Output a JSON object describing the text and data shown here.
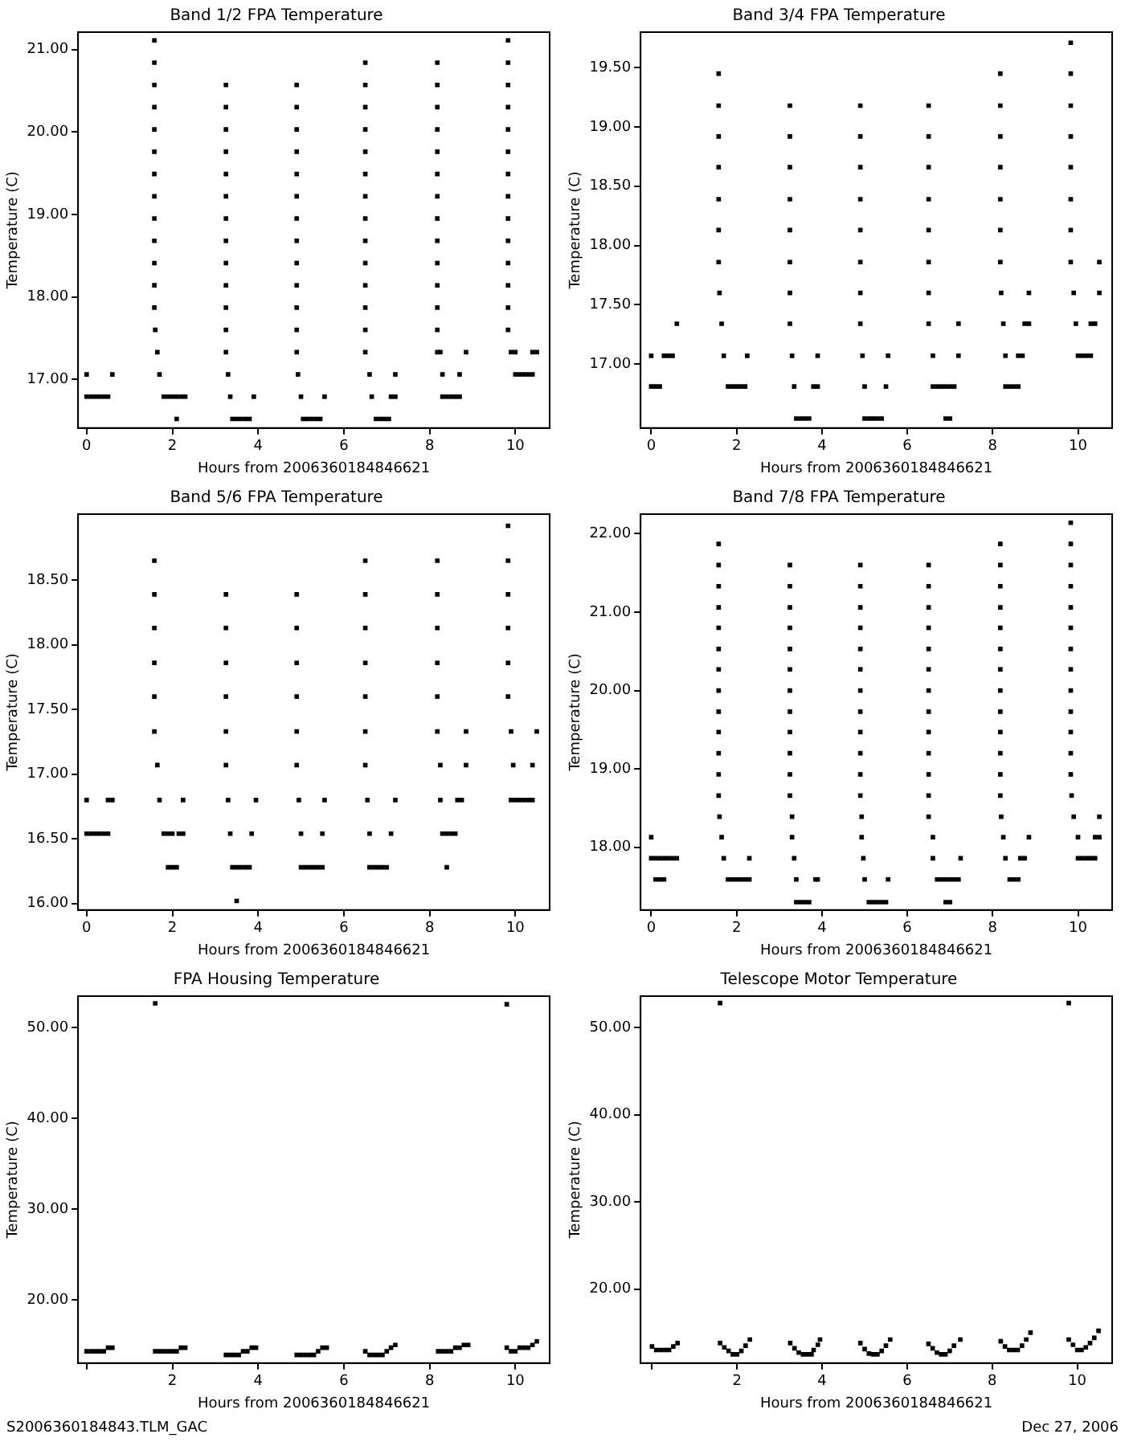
{
  "chart_data": [
    {
      "type": "scatter",
      "title": "Band 1/2 FPA Temperature",
      "xlabel": "Hours from 2006360184846621",
      "ylabel": "Temperature (C)",
      "marker": "square",
      "xlim": [
        -0.2,
        10.8
      ],
      "xticks": [
        0,
        2,
        4,
        6,
        8,
        10
      ],
      "ylim": [
        16.41,
        21.21
      ],
      "yticks": [
        {
          "value": 17,
          "label": "17.00"
        },
        {
          "value": 18,
          "label": "18.00"
        },
        {
          "value": 19,
          "label": "19.00"
        },
        {
          "value": 20,
          "label": "20.00"
        },
        {
          "value": 21,
          "label": "21.00"
        }
      ],
      "series": [
        {
          "color": "#000000",
          "x": [
            0,
            0.1,
            0.2,
            0.3,
            0.4,
            0.5,
            0,
            0.6
          ],
          "values": [
            16.79,
            16.79,
            16.79,
            16.79,
            16.79,
            16.79,
            17.06,
            17.06
          ]
        },
        {
          "color": "#000000",
          "x": [
            1.58,
            1.58,
            1.58,
            1.58,
            1.58,
            1.58,
            1.58,
            1.58,
            1.58,
            1.58,
            1.58,
            1.58,
            1.58,
            1.6,
            1.65,
            1.7
          ],
          "values": [
            17.87,
            18.14,
            18.41,
            18.68,
            18.95,
            19.22,
            19.49,
            19.76,
            20.03,
            20.3,
            20.57,
            20.84,
            21.11,
            17.6,
            17.33,
            17.06
          ]
        },
        {
          "color": "#000000",
          "x": [
            1.8,
            1.9,
            2,
            2.1,
            2.2,
            2.3,
            2.1
          ],
          "values": [
            16.79,
            16.79,
            16.79,
            16.79,
            16.79,
            16.79,
            16.52
          ]
        },
        {
          "color": "#000000",
          "x": [
            3.25,
            3.25,
            3.25,
            3.25,
            3.25,
            3.25,
            3.25,
            3.25,
            3.25,
            3.25,
            3.25,
            3.25,
            3.25,
            3.3,
            3.35,
            3.9,
            3.4,
            3.5,
            3.6,
            3.7,
            3.8
          ],
          "values": [
            17.33,
            17.6,
            17.87,
            18.14,
            18.41,
            18.68,
            18.95,
            19.22,
            19.49,
            19.76,
            20.03,
            20.3,
            20.57,
            17.06,
            16.79,
            16.79,
            16.52,
            16.52,
            16.52,
            16.52,
            16.52
          ]
        },
        {
          "color": "#000000",
          "x": [
            4.9,
            4.9,
            4.9,
            4.9,
            4.9,
            4.9,
            4.9,
            4.9,
            4.9,
            4.9,
            4.9,
            4.9,
            4.9,
            4.93,
            5,
            5.55,
            5.05,
            5.15,
            5.25,
            5.35,
            5.45
          ],
          "values": [
            17.33,
            17.6,
            17.87,
            18.14,
            18.41,
            18.68,
            18.95,
            19.22,
            19.49,
            19.76,
            20.03,
            20.3,
            20.57,
            17.06,
            16.79,
            16.79,
            16.52,
            16.52,
            16.52,
            16.52,
            16.52
          ]
        },
        {
          "color": "#000000",
          "x": [
            6.5,
            6.5,
            6.5,
            6.5,
            6.5,
            6.5,
            6.5,
            6.5,
            6.5,
            6.5,
            6.5,
            6.5,
            6.5,
            6.5,
            6.6,
            7.2,
            6.65,
            7.1,
            7.2,
            6.75,
            6.85,
            6.95,
            7.05
          ],
          "values": [
            17.33,
            17.6,
            17.87,
            18.14,
            18.41,
            18.68,
            18.95,
            19.22,
            19.49,
            19.76,
            20.03,
            20.3,
            20.57,
            20.84,
            17.06,
            17.06,
            16.79,
            16.79,
            16.79,
            16.52,
            16.52,
            16.52,
            16.52
          ]
        },
        {
          "color": "#000000",
          "x": [
            8.18,
            8.18,
            8.18,
            8.18,
            8.18,
            8.18,
            8.18,
            8.18,
            8.18,
            8.18,
            8.18,
            8.18,
            8.18,
            8.18,
            8.25,
            8.85,
            8.3,
            8.7,
            8.3,
            8.4,
            8.5,
            8.6,
            8.7
          ],
          "values": [
            17.33,
            17.6,
            17.87,
            18.14,
            18.41,
            18.68,
            18.95,
            19.22,
            19.49,
            19.76,
            20.03,
            20.3,
            20.57,
            20.84,
            17.33,
            17.33,
            17.06,
            17.06,
            16.79,
            16.79,
            16.79,
            16.79,
            16.79
          ]
        },
        {
          "color": "#000000",
          "x": [
            9.83,
            9.83,
            9.83,
            9.83,
            9.83,
            9.83,
            9.83,
            9.83,
            9.83,
            9.83,
            9.83,
            9.83,
            9.83,
            9.83,
            9.9,
            10,
            10.4,
            10.5,
            10,
            10.1,
            10.2,
            10.3,
            10.4
          ],
          "values": [
            17.6,
            17.87,
            18.14,
            18.41,
            18.68,
            18.95,
            19.22,
            19.49,
            19.76,
            20.03,
            20.3,
            20.57,
            20.84,
            21.11,
            17.33,
            17.33,
            17.33,
            17.33,
            17.06,
            17.06,
            17.06,
            17.06,
            17.06
          ]
        }
      ]
    },
    {
      "type": "scatter",
      "title": "Band 3/4 FPA Temperature",
      "xlabel": "Hours from 2006360184846621",
      "ylabel": "Temperature (C)",
      "marker": "square",
      "xlim": [
        -0.25,
        10.8
      ],
      "xticks": [
        0,
        2,
        4,
        6,
        8,
        10
      ],
      "ylim": [
        16.46,
        19.8
      ],
      "yticks": [
        {
          "value": 17,
          "label": "17.00"
        },
        {
          "value": 17.5,
          "label": "17.50"
        },
        {
          "value": 18,
          "label": "18.00"
        },
        {
          "value": 18.5,
          "label": "18.50"
        },
        {
          "value": 19,
          "label": "19.00"
        },
        {
          "value": 19.5,
          "label": "19.50"
        }
      ],
      "series": [
        {
          "color": "#000000",
          "x": [
            0,
            0.1,
            0.2,
            0,
            0.3,
            0.4,
            0.5,
            0.6
          ],
          "values": [
            16.81,
            16.81,
            16.81,
            17.07,
            17.07,
            17.07,
            17.07,
            17.34
          ]
        },
        {
          "color": "#000000",
          "x": [
            1.58,
            1.58,
            1.58,
            1.58,
            1.58,
            1.58,
            1.58,
            1.6,
            1.65,
            1.7,
            2.25,
            1.8,
            1.9,
            2,
            2.1,
            2.2
          ],
          "values": [
            17.86,
            18.13,
            18.39,
            18.66,
            18.92,
            19.18,
            19.45,
            17.6,
            17.34,
            17.07,
            17.07,
            16.81,
            16.81,
            16.81,
            16.81,
            16.81
          ]
        },
        {
          "color": "#000000",
          "x": [
            3.25,
            3.25,
            3.25,
            3.25,
            3.25,
            3.25,
            3.25,
            3.25,
            3.3,
            3.9,
            3.35,
            3.8,
            3.9,
            3.4,
            3.5,
            3.6,
            3.7
          ],
          "values": [
            17.34,
            17.6,
            17.86,
            18.13,
            18.39,
            18.66,
            18.92,
            19.18,
            17.07,
            17.07,
            16.81,
            16.81,
            16.81,
            16.54,
            16.54,
            16.54,
            16.54
          ]
        },
        {
          "color": "#000000",
          "x": [
            4.9,
            4.9,
            4.9,
            4.9,
            4.9,
            4.9,
            4.9,
            4.9,
            4.95,
            5.55,
            5,
            5.5,
            5,
            5.1,
            5.2,
            5.3,
            5.4
          ],
          "values": [
            17.34,
            17.6,
            17.86,
            18.13,
            18.39,
            18.66,
            18.92,
            19.18,
            17.07,
            17.07,
            16.81,
            16.81,
            16.54,
            16.54,
            16.54,
            16.54,
            16.54
          ]
        },
        {
          "color": "#000000",
          "x": [
            6.5,
            6.5,
            6.5,
            6.5,
            6.5,
            6.5,
            6.5,
            6.5,
            7.2,
            6.6,
            7.2,
            6.6,
            6.7,
            6.8,
            6.9,
            7,
            7.1,
            6.9,
            7
          ],
          "values": [
            17.6,
            17.86,
            18.13,
            18.39,
            18.66,
            18.92,
            19.18,
            17.34,
            17.34,
            17.07,
            17.07,
            16.81,
            16.81,
            16.81,
            16.81,
            16.81,
            16.81,
            16.54,
            16.54
          ]
        },
        {
          "color": "#000000",
          "x": [
            8.18,
            8.18,
            8.18,
            8.18,
            8.18,
            8.18,
            8.18,
            8.2,
            8.85,
            8.25,
            8.75,
            8.85,
            8.3,
            8.6,
            8.7,
            8.3,
            8.4,
            8.5,
            8.6
          ],
          "values": [
            17.86,
            18.13,
            18.39,
            18.66,
            18.92,
            19.18,
            19.45,
            17.6,
            17.6,
            17.34,
            17.34,
            17.34,
            17.07,
            17.07,
            17.07,
            16.81,
            16.81,
            16.81,
            16.81
          ]
        },
        {
          "color": "#000000",
          "x": [
            9.83,
            9.83,
            9.83,
            9.83,
            9.83,
            9.83,
            9.83,
            9.83,
            9.9,
            9.95,
            10.3,
            10.4,
            10.5,
            10.5,
            10,
            10.1,
            10.2,
            10.3
          ],
          "values": [
            17.86,
            18.13,
            18.39,
            18.66,
            18.92,
            19.18,
            19.45,
            19.71,
            17.6,
            17.34,
            17.34,
            17.34,
            17.6,
            17.86,
            17.07,
            17.07,
            17.07,
            17.07
          ]
        }
      ]
    },
    {
      "type": "scatter",
      "title": "Band 5/6 FPA Temperature",
      "xlabel": "Hours from 2006360184846621",
      "ylabel": "Temperature (C)",
      "marker": "square",
      "xlim": [
        -0.2,
        10.8
      ],
      "xticks": [
        0,
        2,
        4,
        6,
        8,
        10
      ],
      "ylim": [
        15.95,
        19.01
      ],
      "yticks": [
        {
          "value": 16,
          "label": "16.00"
        },
        {
          "value": 16.5,
          "label": "16.50"
        },
        {
          "value": 17,
          "label": "17.00"
        },
        {
          "value": 17.5,
          "label": "17.50"
        },
        {
          "value": 18,
          "label": "18.00"
        },
        {
          "value": 18.5,
          "label": "18.50"
        }
      ],
      "series": [
        {
          "color": "#000000",
          "x": [
            0,
            0.5,
            0.6,
            0,
            0.1,
            0.2,
            0.3,
            0.4,
            0.5
          ],
          "values": [
            16.8,
            16.8,
            16.8,
            16.54,
            16.54,
            16.54,
            16.54,
            16.54,
            16.54
          ]
        },
        {
          "color": "#000000",
          "x": [
            1.58,
            1.58,
            1.58,
            1.58,
            1.58,
            1.58,
            1.65,
            1.7,
            2.25,
            1.8,
            1.9,
            2,
            2.15,
            2.25,
            1.9,
            2,
            2.1
          ],
          "values": [
            17.33,
            17.6,
            17.86,
            18.13,
            18.39,
            18.65,
            17.07,
            16.8,
            16.8,
            16.54,
            16.54,
            16.54,
            16.54,
            16.54,
            16.28,
            16.28,
            16.28
          ]
        },
        {
          "color": "#000000",
          "x": [
            3.25,
            3.25,
            3.25,
            3.25,
            3.25,
            3.25,
            3.3,
            3.95,
            3.35,
            3.85,
            3.4,
            3.5,
            3.6,
            3.7,
            3.8,
            3.5
          ],
          "values": [
            17.07,
            17.33,
            17.6,
            17.86,
            18.13,
            18.39,
            16.8,
            16.8,
            16.54,
            16.54,
            16.28,
            16.28,
            16.28,
            16.28,
            16.28,
            16.02
          ]
        },
        {
          "color": "#000000",
          "x": [
            4.9,
            4.9,
            4.9,
            4.9,
            4.9,
            4.9,
            4.95,
            5.55,
            5,
            5.5,
            5,
            5.1,
            5.2,
            5.3,
            5.4,
            5.5
          ],
          "values": [
            17.07,
            17.33,
            17.6,
            17.86,
            18.13,
            18.39,
            16.8,
            16.8,
            16.54,
            16.54,
            16.28,
            16.28,
            16.28,
            16.28,
            16.28,
            16.28
          ]
        },
        {
          "color": "#000000",
          "x": [
            6.5,
            6.5,
            6.5,
            6.5,
            6.5,
            6.5,
            6.5,
            6.55,
            7.2,
            6.6,
            7.1,
            6.6,
            6.7,
            6.8,
            6.9,
            7
          ],
          "values": [
            17.07,
            17.33,
            17.6,
            17.86,
            18.13,
            18.39,
            18.65,
            16.8,
            16.8,
            16.54,
            16.54,
            16.28,
            16.28,
            16.28,
            16.28,
            16.28
          ]
        },
        {
          "color": "#000000",
          "x": [
            8.18,
            8.18,
            8.18,
            8.18,
            8.18,
            8.18,
            8.25,
            8.85,
            8.85,
            8.25,
            8.65,
            8.75,
            8.3,
            8.4,
            8.5,
            8.6,
            8.4
          ],
          "values": [
            17.33,
            17.6,
            17.86,
            18.13,
            18.39,
            18.65,
            17.07,
            17.33,
            17.07,
            16.8,
            16.8,
            16.8,
            16.54,
            16.54,
            16.54,
            16.54,
            16.28
          ]
        },
        {
          "color": "#000000",
          "x": [
            9.83,
            9.83,
            9.83,
            9.83,
            9.83,
            9.83,
            9.9,
            10.5,
            9.95,
            10.4,
            9.9,
            10,
            10.1,
            10.2,
            10.3,
            10.4
          ],
          "values": [
            17.6,
            17.86,
            18.13,
            18.39,
            18.65,
            18.92,
            17.33,
            17.33,
            17.07,
            17.07,
            16.8,
            16.8,
            16.8,
            16.8,
            16.8,
            16.8
          ]
        }
      ]
    },
    {
      "type": "scatter",
      "title": "Band 7/8 FPA Temperature",
      "xlabel": "Hours from 2006360184846621",
      "ylabel": "Temperature (C)",
      "marker": "square",
      "xlim": [
        -0.25,
        10.8
      ],
      "xticks": [
        0,
        2,
        4,
        6,
        8,
        10
      ],
      "ylim": [
        17.2,
        22.25
      ],
      "yticks": [
        {
          "value": 18,
          "label": "18.00"
        },
        {
          "value": 19,
          "label": "19.00"
        },
        {
          "value": 20,
          "label": "20.00"
        },
        {
          "value": 21,
          "label": "21.00"
        },
        {
          "value": 22,
          "label": "22.00"
        }
      ],
      "series": [
        {
          "color": "#000000",
          "x": [
            0,
            0,
            0.1,
            0.2,
            0.3,
            0.4,
            0.5,
            0.6,
            0.1,
            0.2,
            0.3
          ],
          "values": [
            18.13,
            17.86,
            17.86,
            17.86,
            17.86,
            17.86,
            17.86,
            17.86,
            17.59,
            17.59,
            17.59
          ]
        },
        {
          "color": "#000000",
          "x": [
            1.58,
            1.58,
            1.58,
            1.58,
            1.58,
            1.58,
            1.58,
            1.58,
            1.58,
            1.58,
            1.58,
            1.58,
            1.58,
            1.6,
            1.65,
            1.7,
            2.3,
            1.8,
            1.9,
            2,
            2.1,
            2.2,
            2.3
          ],
          "values": [
            18.66,
            18.93,
            19.2,
            19.47,
            19.73,
            20,
            20.27,
            20.53,
            20.8,
            21.06,
            21.33,
            21.6,
            21.87,
            18.39,
            18.13,
            17.86,
            17.86,
            17.59,
            17.59,
            17.59,
            17.59,
            17.59,
            17.59
          ]
        },
        {
          "color": "#000000",
          "x": [
            3.25,
            3.25,
            3.25,
            3.25,
            3.25,
            3.25,
            3.25,
            3.25,
            3.25,
            3.25,
            3.25,
            3.25,
            3.3,
            3.3,
            3.35,
            3.4,
            3.85,
            3.9,
            3.4,
            3.5,
            3.6,
            3.7
          ],
          "values": [
            18.66,
            18.93,
            19.2,
            19.47,
            19.73,
            20,
            20.27,
            20.53,
            20.8,
            21.06,
            21.33,
            21.6,
            18.39,
            18.13,
            17.86,
            17.59,
            17.59,
            17.59,
            17.3,
            17.3,
            17.3,
            17.3
          ]
        },
        {
          "color": "#000000",
          "x": [
            4.9,
            4.9,
            4.9,
            4.9,
            4.9,
            4.9,
            4.9,
            4.9,
            4.9,
            4.9,
            4.9,
            4.9,
            4.93,
            4.93,
            4.97,
            5,
            5.55,
            5.1,
            5.2,
            5.3,
            5.4,
            5.5
          ],
          "values": [
            18.66,
            18.93,
            19.2,
            19.47,
            19.73,
            20,
            20.27,
            20.53,
            20.8,
            21.06,
            21.33,
            21.6,
            18.39,
            18.13,
            17.86,
            17.59,
            17.59,
            17.3,
            17.3,
            17.3,
            17.3,
            17.3
          ]
        },
        {
          "color": "#000000",
          "x": [
            6.5,
            6.5,
            6.5,
            6.5,
            6.5,
            6.5,
            6.5,
            6.5,
            6.5,
            6.5,
            6.5,
            6.5,
            6.5,
            6.6,
            6.6,
            7.25,
            6.7,
            6.8,
            6.9,
            7,
            7.1,
            7.2,
            6.9,
            7
          ],
          "values": [
            18.66,
            18.93,
            19.2,
            19.47,
            19.73,
            20,
            20.27,
            20.53,
            20.8,
            21.06,
            21.33,
            21.6,
            18.39,
            18.13,
            17.86,
            17.86,
            17.59,
            17.59,
            17.59,
            17.59,
            17.59,
            17.59,
            17.3,
            17.3
          ]
        },
        {
          "color": "#000000",
          "x": [
            8.18,
            8.18,
            8.18,
            8.18,
            8.18,
            8.18,
            8.18,
            8.18,
            8.18,
            8.18,
            8.18,
            8.18,
            8.18,
            8.2,
            8.25,
            8.85,
            8.3,
            8.65,
            8.75,
            8.4,
            8.5,
            8.6
          ],
          "values": [
            18.66,
            18.93,
            19.2,
            19.47,
            19.73,
            20,
            20.27,
            20.53,
            20.8,
            21.06,
            21.33,
            21.6,
            21.87,
            18.39,
            18.13,
            18.13,
            17.86,
            17.86,
            17.86,
            17.59,
            17.59,
            17.59
          ]
        },
        {
          "color": "#000000",
          "x": [
            9.83,
            9.83,
            9.83,
            9.83,
            9.83,
            9.83,
            9.83,
            9.83,
            9.83,
            9.83,
            9.83,
            9.83,
            9.83,
            9.85,
            9.9,
            10.5,
            10,
            10.4,
            10.5,
            10,
            10.1,
            10.2,
            10.3,
            10.4
          ],
          "values": [
            18.93,
            19.2,
            19.47,
            19.73,
            20,
            20.27,
            20.53,
            20.8,
            21.06,
            21.33,
            21.6,
            21.87,
            22.14,
            18.66,
            18.39,
            18.39,
            18.13,
            18.13,
            18.13,
            17.86,
            17.86,
            17.86,
            17.86,
            17.86
          ]
        }
      ]
    },
    {
      "type": "scatter",
      "title": "FPA Housing Temperature",
      "xlabel": "Hours from 2006360184846621",
      "ylabel": "Temperature (C)",
      "marker": "square",
      "annotations": [
        "S2006360184843.TLM_GAC"
      ],
      "xlim": [
        -0.2,
        10.8
      ],
      "xticks": [
        {
          "value": 0,
          "label": null
        },
        2,
        4,
        6,
        8,
        10
      ],
      "ylim": [
        13,
        53.5
      ],
      "yticks": [
        {
          "value": 20,
          "label": "20.00"
        },
        {
          "value": 30,
          "label": "30.00"
        },
        {
          "value": 40,
          "label": "40.00"
        },
        {
          "value": 50,
          "label": "50.00"
        }
      ],
      "series": [
        {
          "color": "#000000",
          "x": [
            0,
            0.1,
            0.2,
            0.3,
            0.4,
            0.5,
            0.6,
            1.6,
            1.6,
            1.7,
            1.8,
            1.9,
            2,
            2.1,
            2.2,
            2.3,
            3.25,
            3.35,
            3.45,
            3.55,
            3.65,
            3.75,
            3.85,
            3.95,
            4.9,
            5,
            5.1,
            5.2,
            5.3,
            5.4,
            5.5,
            5.6,
            6.5,
            6.6,
            6.7,
            6.8,
            6.9,
            7,
            7.1,
            7.2,
            8.2,
            8.3,
            8.4,
            8.5,
            8.6,
            8.7,
            8.8,
            8.9,
            9.8,
            9.8,
            9.9,
            10,
            10.1,
            10.2,
            10.3,
            10.4,
            10.5
          ],
          "values": [
            14.3,
            14.3,
            14.3,
            14.3,
            14.3,
            14.7,
            14.7,
            52.7,
            14.3,
            14.3,
            14.3,
            14.3,
            14.3,
            14.3,
            14.7,
            14.7,
            13.9,
            13.9,
            13.9,
            13.9,
            14.3,
            14.3,
            14.7,
            14.7,
            13.9,
            13.9,
            13.9,
            13.9,
            13.9,
            14.3,
            14.7,
            14.7,
            14.3,
            13.9,
            13.9,
            13.9,
            13.9,
            14.3,
            14.7,
            15,
            14.3,
            14.3,
            14.3,
            14.3,
            14.7,
            14.7,
            15,
            15,
            52.6,
            14.7,
            14.3,
            14.3,
            14.7,
            14.7,
            14.7,
            15,
            15.4
          ]
        }
      ]
    },
    {
      "type": "scatter",
      "title": "Telescope Motor Temperature",
      "xlabel": "Hours from 2006360184846621",
      "ylabel": "Temperature (C)",
      "marker": "square",
      "annotations": [
        "Dec 27, 2006"
      ],
      "xlim": [
        -0.27,
        10.82
      ],
      "xticks": [
        {
          "value": 0,
          "label": null
        },
        2,
        4,
        6,
        8,
        10
      ],
      "ylim": [
        11.5,
        53.6
      ],
      "yticks": [
        {
          "value": 20,
          "label": "20.00"
        },
        {
          "value": 30,
          "label": "30.00"
        },
        {
          "value": 40,
          "label": "40.00"
        },
        {
          "value": 50,
          "label": "50.00"
        }
      ],
      "series": [
        {
          "color": "#000000",
          "x": [
            0,
            0.1,
            0.2,
            0.3,
            0.4,
            0.5,
            0.6,
            1.6,
            1.6,
            1.7,
            1.8,
            1.9,
            2,
            2.1,
            2.2,
            2.3,
            3.25,
            3.35,
            3.45,
            3.55,
            3.65,
            3.75,
            3.8,
            3.9,
            3.95,
            4.9,
            5,
            5.1,
            5.2,
            5.3,
            5.4,
            5.5,
            5.6,
            6.5,
            6.6,
            6.7,
            6.8,
            6.9,
            7,
            7.1,
            7.25,
            8.2,
            8.3,
            8.4,
            8.5,
            8.6,
            8.7,
            8.8,
            8.9,
            9.8,
            9.8,
            9.9,
            10,
            10.1,
            10.2,
            10.3,
            10.4,
            10.5
          ],
          "values": [
            13.4,
            13,
            13,
            13,
            13,
            13.4,
            13.8,
            52.8,
            13.8,
            13.3,
            12.9,
            12.5,
            12.5,
            12.9,
            13.5,
            14.2,
            13.8,
            13.2,
            12.7,
            12.5,
            12.5,
            12.5,
            13,
            13.6,
            14.2,
            13.8,
            13.1,
            12.6,
            12.5,
            12.5,
            12.9,
            13.5,
            14.2,
            13.7,
            13.2,
            12.7,
            12.5,
            12.5,
            12.9,
            13.5,
            14.2,
            14,
            13.4,
            13,
            13,
            13,
            13.5,
            14.2,
            15,
            52.8,
            14.2,
            13.6,
            13,
            13,
            13.3,
            13.8,
            14.4,
            15.2
          ]
        }
      ]
    }
  ]
}
